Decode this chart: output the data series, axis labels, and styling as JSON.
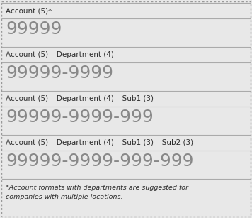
{
  "bg_color": "#e8e8e8",
  "border_color": "#999999",
  "line_color": "#aaaaaa",
  "rows": [
    {
      "label": "Account (5)*",
      "value": "99999",
      "label_fontsize": 7.5,
      "value_fontsize": 18
    },
    {
      "label": "Account (5) – Department (4)",
      "value": "99999-9999",
      "label_fontsize": 7.5,
      "value_fontsize": 18
    },
    {
      "label": "Account (5) – Department (4) – Sub1 (3)",
      "value": "99999-9999-999",
      "label_fontsize": 7.5,
      "value_fontsize": 18
    },
    {
      "label": "Account (5) – Department (4) – Sub1 (3) – Sub2 (3)",
      "value": "99999-9999-999-999",
      "label_fontsize": 7.5,
      "value_fontsize": 18
    }
  ],
  "footnote": "*Account formats with departments are suggested for\ncompanies with multiple locations.",
  "footnote_fontsize": 6.8,
  "text_color": "#2d2d2d",
  "value_color": "#888888",
  "fig_width": 3.56,
  "fig_height": 3.07,
  "dpi": 100
}
